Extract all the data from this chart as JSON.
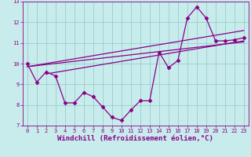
{
  "xlabel": "Windchill (Refroidissement éolien,°C)",
  "ylabel": "",
  "background_color": "#c8ecec",
  "line_color": "#880088",
  "grid_color": "#99cccc",
  "xlim": [
    -0.5,
    23.5
  ],
  "ylim": [
    7,
    13
  ],
  "xticks": [
    0,
    1,
    2,
    3,
    4,
    5,
    6,
    7,
    8,
    9,
    10,
    11,
    12,
    13,
    14,
    15,
    16,
    17,
    18,
    19,
    20,
    21,
    22,
    23
  ],
  "yticks": [
    7,
    8,
    9,
    10,
    11,
    12,
    13
  ],
  "line1_x": [
    0,
    1,
    2,
    3,
    4,
    5,
    6,
    7,
    8,
    9,
    10,
    11,
    12,
    13,
    14,
    15,
    16,
    17,
    18,
    19,
    20,
    21,
    22,
    23
  ],
  "line1_y": [
    10.0,
    9.1,
    9.6,
    9.4,
    8.1,
    8.1,
    8.6,
    8.4,
    7.9,
    7.4,
    7.25,
    7.75,
    8.2,
    8.2,
    10.55,
    9.8,
    10.15,
    12.2,
    12.75,
    12.2,
    11.1,
    11.1,
    11.15,
    11.25
  ],
  "line2_x": [
    0,
    23
  ],
  "line2_y": [
    9.85,
    11.05
  ],
  "line3_x": [
    0,
    23
  ],
  "line3_y": [
    9.85,
    11.6
  ],
  "line4_x": [
    2,
    23
  ],
  "line4_y": [
    9.5,
    11.1
  ],
  "marker": "D",
  "markersize": 2.5,
  "linewidth": 0.9,
  "tick_fontsize": 5.0,
  "xlabel_fontsize": 6.5,
  "axis_text_color": "#880088"
}
